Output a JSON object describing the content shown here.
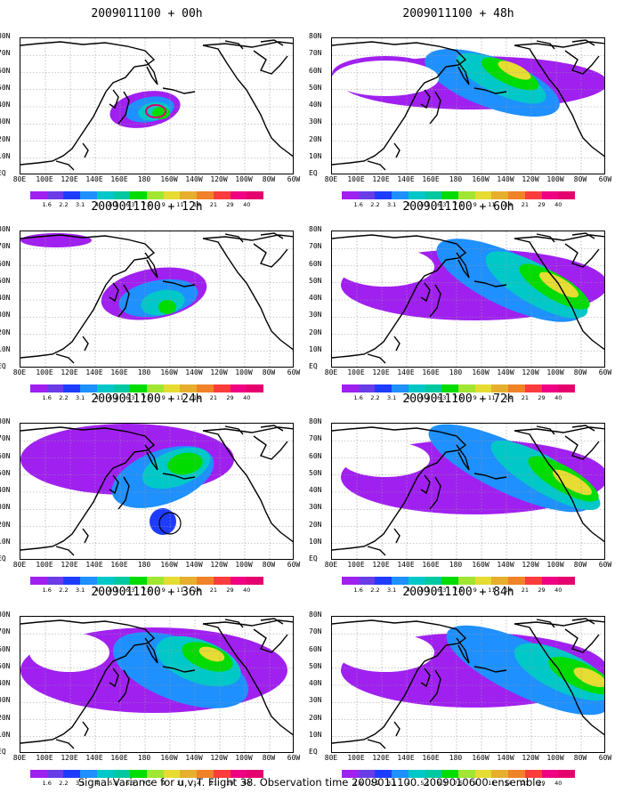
{
  "panels": [
    {
      "title": "2009011100 + 00h"
    },
    {
      "title": "2009011100 + 48h"
    },
    {
      "title": "2009011100 + 12h"
    },
    {
      "title": "2009011100 + 60h"
    },
    {
      "title": "2009011100 + 24h"
    },
    {
      "title": "2009011100 + 72h"
    },
    {
      "title": "2009011100 + 36h"
    },
    {
      "title": "2009011100 + 84h"
    }
  ],
  "lat_labels": [
    "80N",
    "70N",
    "60N",
    "50N",
    "40N",
    "30N",
    "20N",
    "10N",
    "EQ"
  ],
  "lon_labels": [
    "80E",
    "100E",
    "120E",
    "140E",
    "160E",
    "180",
    "160W",
    "140W",
    "120W",
    "100W",
    "80W",
    "60W"
  ],
  "colorbar": {
    "labels": [
      "1.6",
      "2.2",
      "3.1",
      "4",
      "5.1",
      "6.3",
      "7.5",
      "9",
      "11",
      "14",
      "21",
      "29",
      "40"
    ],
    "colors": [
      "#a020f0",
      "#6a3ce8",
      "#1e3cff",
      "#1e90ff",
      "#00c8c8",
      "#00c8a0",
      "#00dc00",
      "#a0e632",
      "#e6dc32",
      "#e6af2d",
      "#f08228",
      "#fa3c3c",
      "#f00082"
    ]
  },
  "footer": "Signal Variance for u,v,T. Flight 38. Observation time 2009011100. 2009010600 ensemble."
}
